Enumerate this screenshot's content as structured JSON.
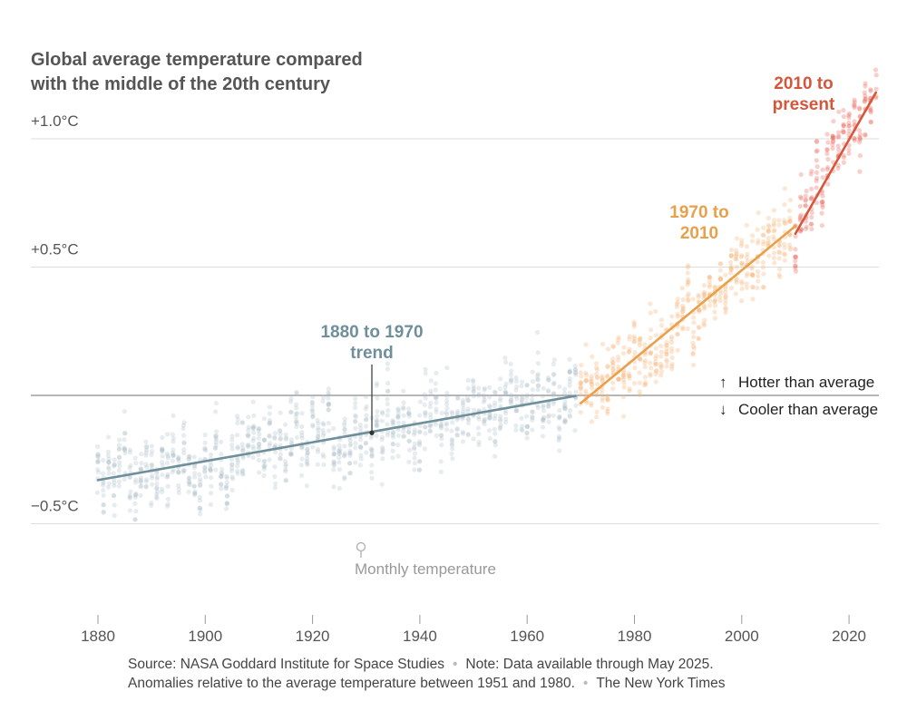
{
  "chart_data": {
    "type": "scatter",
    "title_line1": "Global average temperature compared",
    "title_line2": "with the middle of the 20th century",
    "xlabel": "",
    "ylabel": "",
    "xlim": [
      1868,
      2026
    ],
    "ylim": [
      -1.05,
      1.55
    ],
    "x_ticks": [
      1880,
      1900,
      1920,
      1940,
      1960,
      1980,
      2000,
      2020
    ],
    "x_tick_labels": [
      "1880",
      "1900",
      "1920",
      "1940",
      "1960",
      "1980",
      "2000",
      "2020"
    ],
    "y_ticks": [
      1.0,
      0.5,
      0.0,
      -0.5
    ],
    "y_tick_labels": [
      "+1.0°C",
      "+0.5°C",
      "",
      "−0.5°C"
    ],
    "series": [
      {
        "name": "Monthly temperature",
        "type": "scatter",
        "note": "monthly anomalies 1880–May 2025, approximated by a trend plus spread",
        "period_colors": [
          "#a9bcc4",
          "#f5b57a",
          "#ea6a5d"
        ]
      },
      {
        "name": "1880 to 1970 trend",
        "type": "line",
        "x": [
          1880,
          1969
        ],
        "y": [
          -0.33,
          -0.002
        ],
        "color": "#6f8f9a"
      },
      {
        "name": "1970 to 2010",
        "type": "line",
        "x": [
          1970,
          2010
        ],
        "y": [
          -0.03,
          0.66
        ],
        "color": "#e9a04a"
      },
      {
        "name": "2010 to present",
        "type": "line",
        "x": [
          2010,
          2025
        ],
        "y": [
          0.63,
          1.18
        ],
        "color": "#d4573b"
      }
    ],
    "annotations": {
      "trend_1880_line1": "1880 to 1970",
      "trend_1880_line2": "trend",
      "trend_1970_line1": "1970 to",
      "trend_1970_line2": "2010",
      "trend_2010_line1": "2010 to",
      "trend_2010_line2": "present",
      "hotter": "Hotter than average",
      "cooler": "Cooler than average",
      "hotter_arrow": "↑",
      "cooler_arrow": "↓",
      "dots_label": "Monthly temperature"
    }
  },
  "footer": {
    "source": "Source: NASA Goddard Institute for Space Studies",
    "note": "Note: Data available through May 2025. Anomalies relative to the average temperature between 1951 and 1980.",
    "credit": "The New York Times"
  },
  "colors": {
    "old_trend": "#6f8f9a",
    "mid_trend": "#e9a04a",
    "new_trend": "#d4573b",
    "old_dots": "#a9bcc4",
    "mid_dots": "#f5b57a",
    "new_dots": "#ea6a5d",
    "grid": "#dddddd",
    "zero_line": "#8a8a8a"
  }
}
